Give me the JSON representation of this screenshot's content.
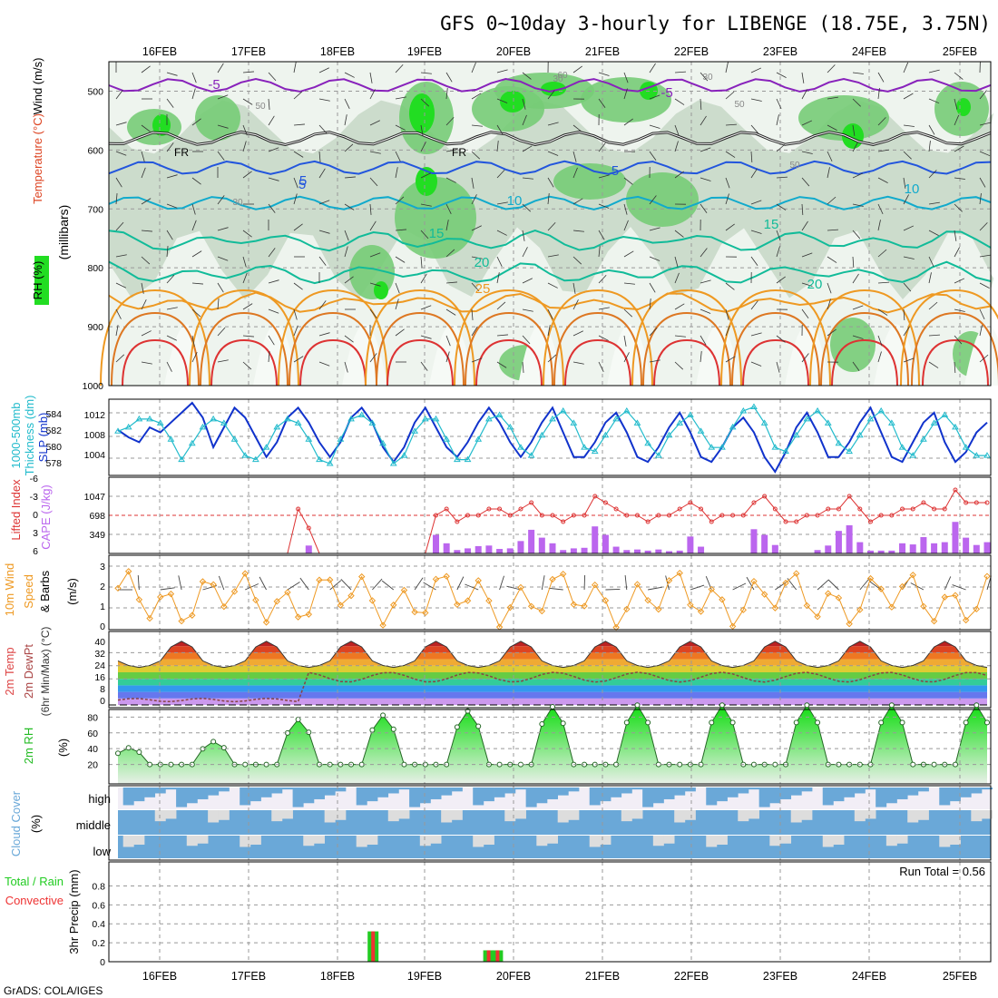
{
  "title": "GFS 0~10day 3-hourly for LIBENGE (18.75E, 3.75N)",
  "footer": "GrADS: COLA/IGES",
  "dates": [
    "16FEB",
    "17FEB",
    "18FEB",
    "19FEB",
    "20FEB",
    "21FEB",
    "22FEB",
    "23FEB",
    "24FEB",
    "25FEB"
  ],
  "colors": {
    "rh_green": "#22dd22",
    "rh_mid": "#77cc77",
    "rh_light": "#ccdccc",
    "temp_purple": "#8822bb",
    "temp_blue": "#2255dd",
    "temp_cyan": "#11aacc",
    "temp_teal": "#11bb99",
    "temp_orange": "#ee9922",
    "temp_red": "#dd3333",
    "slp": "#1133cc",
    "thickness": "#22bbcc",
    "lifted": "#dd3333",
    "cape": "#bb66ee",
    "wind10m": "#ee9922",
    "rh2m": "#22bb22",
    "cloud": "#6aa8d8",
    "precip_total": "#22cc22",
    "precip_conv": "#ee3333"
  },
  "chart_data": [
    {
      "type": "heatmap",
      "panel": "Upper-air profile",
      "ylabels": [
        "Temperature (°C)",
        "Wind (m/s)",
        "RH (%)"
      ],
      "yaxis_title": "(millibars)",
      "y_ticks": [
        "500",
        "600",
        "700",
        "800",
        "900",
        "1000"
      ],
      "ylim": [
        1000,
        450
      ],
      "contour_labels": [
        "-5",
        "FR",
        "FR",
        "5",
        "5",
        "10",
        "15",
        "20",
        "20",
        "25",
        "-5",
        "5",
        "15",
        "10",
        "50",
        "50",
        "30",
        "30",
        "30",
        "60",
        "50"
      ],
      "isotherms": [
        {
          "name": "-5",
          "pressure": 490
        },
        {
          "name": "0 (FR)",
          "pressure": 580
        },
        {
          "name": "5",
          "pressure": 630
        },
        {
          "name": "10",
          "pressure": 690
        },
        {
          "name": "15",
          "pressure": 745
        },
        {
          "name": "20",
          "pressure": 800
        },
        {
          "name": "25",
          "pressure": 850
        }
      ]
    },
    {
      "type": "line",
      "panel": "SLP and thickness",
      "ylabels": [
        "1000-500mb",
        "Thickness (dm)",
        "SLP (mb)"
      ],
      "left_ticks": [
        "584",
        "582",
        "580",
        "578"
      ],
      "right_ticks": [
        "1012",
        "1008",
        "1004"
      ],
      "series": [
        {
          "name": "SLP (mb)",
          "values": [
            1008.5,
            1007,
            1006,
            1009,
            1008,
            1010,
            1012,
            1014,
            1011,
            1005,
            1009,
            1013,
            1011,
            1007,
            1003,
            1006,
            1011,
            1013,
            1010,
            1006,
            1003,
            1006,
            1011,
            1013,
            1010,
            1005,
            1002,
            1005,
            1010,
            1013,
            1009,
            1005,
            1003,
            1006,
            1010,
            1013,
            1010,
            1006,
            1003,
            1006,
            1010,
            1013,
            1008,
            1003,
            1003,
            1006,
            1010,
            1012,
            1008,
            1003,
            1002,
            1005,
            1009,
            1012,
            1008,
            1003,
            1002,
            1005,
            1009,
            1011,
            1008,
            1003,
            1000,
            1004,
            1009,
            1012,
            1008,
            1003,
            1003,
            1006,
            1010,
            1013,
            1008,
            1003,
            1002,
            1006,
            1010,
            1012,
            1006,
            1002,
            1004,
            1008,
            1010
          ]
        },
        {
          "name": "1000-500mb Thickness (dm)",
          "values": [
            582,
            582.5,
            583.5,
            583.5,
            583,
            581,
            578.5,
            580.5,
            582.5,
            583.5,
            583,
            581,
            579,
            578.5,
            580,
            582.5,
            583.5,
            583,
            581,
            578.5,
            578,
            581,
            583.5,
            584,
            583,
            580.5,
            578,
            579,
            582,
            583.5,
            583.5,
            581,
            578.5,
            578.5,
            581,
            583.5,
            584,
            582.5,
            580,
            579,
            581.5,
            583.5,
            584.5,
            583,
            580,
            579.5,
            581.5,
            583.5,
            584.5,
            583,
            580.5,
            579,
            581.5,
            583,
            584,
            582,
            580,
            580,
            582.5,
            584.5,
            585,
            583,
            580,
            579.5,
            581.5,
            583.5,
            584.5,
            583,
            580.5,
            579.5,
            581.5,
            583.5,
            584.5,
            583,
            580,
            579,
            581,
            583,
            584,
            582.5,
            580,
            579,
            579
          ]
        }
      ]
    },
    {
      "type": "bar",
      "panel": "Lifted Index and CAPE",
      "ylabels": [
        "Lifted Index",
        "CAPE (J/kg)"
      ],
      "left_ticks": [
        "-6",
        "-3",
        "0",
        "3",
        "6"
      ],
      "right_ticks": [
        "1047",
        "698",
        "349"
      ],
      "series": [
        {
          "name": "CAPE (J/kg)",
          "values": [
            0,
            0,
            0,
            0,
            0,
            0,
            0,
            0,
            0,
            0,
            0,
            0,
            0,
            0,
            0,
            0,
            0,
            0,
            0,
            0,
            0,
            0,
            0,
            0,
            0,
            0,
            0,
            0,
            0,
            0,
            0,
            0,
            0,
            0,
            0,
            0,
            0,
            0,
            0,
            0,
            0,
            0,
            0,
            0,
            0,
            0,
            0,
            0,
            0,
            0,
            0,
            0,
            0,
            0,
            0,
            0,
            0,
            0,
            0,
            0,
            0,
            0,
            0,
            0,
            0,
            0,
            0,
            0,
            0,
            0,
            0,
            0,
            0,
            0,
            0,
            0,
            0,
            0,
            0,
            0,
            0,
            0,
            0
          ]
        },
        {
          "name": "Lifted Index",
          "values": [
            0,
            0,
            0,
            0,
            0,
            0,
            0,
            0,
            0,
            0,
            0,
            0,
            0,
            0,
            0,
            0,
            0,
            0,
            0,
            0,
            0,
            0,
            0,
            0,
            0,
            0,
            0,
            0,
            0,
            0,
            0,
            0,
            0,
            0,
            0,
            0,
            0,
            0,
            0,
            0,
            0,
            0,
            0,
            0,
            0,
            0,
            0,
            0,
            0,
            0,
            0,
            0,
            0,
            0,
            0,
            0,
            0,
            0,
            0,
            0,
            0,
            0,
            0,
            0,
            0,
            0,
            0,
            0,
            0,
            0,
            0,
            0,
            0,
            0,
            0,
            0,
            0,
            0,
            0,
            0,
            0,
            0,
            0
          ]
        }
      ]
    },
    {
      "type": "line",
      "panel": "10m wind",
      "ylabels": [
        "10m Wind",
        "Speed",
        "& Barbs",
        "(m/s)"
      ],
      "left_ticks": [
        "3",
        "2",
        "1",
        "0"
      ],
      "series": [
        {
          "name": "10m Wind Speed (m/s)",
          "values": []
        }
      ]
    },
    {
      "type": "area",
      "panel": "2m temperature",
      "ylabels": [
        "2m Temp",
        "2m DewPt",
        "(6hr Min/Max) (°C)"
      ],
      "left_ticks": [
        "40",
        "32",
        "24",
        "16",
        "8",
        "0"
      ],
      "series": [
        {
          "name": "2m Temp (°C)",
          "values": []
        },
        {
          "name": "2m DewPt (°C)",
          "values": []
        }
      ]
    },
    {
      "type": "area",
      "panel": "2m RH",
      "ylabels": [
        "2m RH",
        "(%)"
      ],
      "left_ticks": [
        "80",
        "60",
        "40",
        "20"
      ],
      "series": [
        {
          "name": "2m RH (%)",
          "values": []
        }
      ]
    },
    {
      "type": "heatmap",
      "panel": "Cloud cover",
      "ylabels": [
        "Cloud Cover",
        "(%)"
      ],
      "left_ticks": [
        "high",
        "middle",
        "low"
      ]
    },
    {
      "type": "bar",
      "panel": "3hr precipitation",
      "ylabels": [
        "Total / Rain",
        "Convective",
        "3hr Precip (mm)"
      ],
      "left_ticks": [
        "0.8",
        "0.6",
        "0.4",
        "0.2",
        "0"
      ],
      "run_total": "Run Total = 0.56",
      "series": [
        {
          "name": "Total / Rain (mm)",
          "bars": [
            {
              "date_index": 2.4,
              "value": 0.32
            },
            {
              "date_index": 3.7,
              "value": 0.12
            },
            {
              "date_index": 3.8,
              "value": 0.12
            }
          ]
        },
        {
          "name": "Convective (mm)",
          "bars": [
            {
              "date_index": 2.4,
              "value": 0.32
            },
            {
              "date_index": 3.7,
              "value": 0.12
            },
            {
              "date_index": 3.8,
              "value": 0.12
            }
          ]
        }
      ]
    }
  ]
}
